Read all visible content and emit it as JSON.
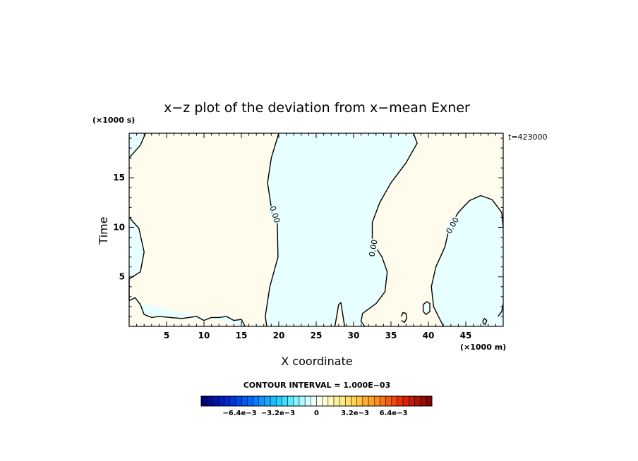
{
  "chart_data": {
    "type": "contour",
    "title": "x−z plot of the deviation from x−mean Exner",
    "xlabel": "X coordinate",
    "ylabel": "Time",
    "x_unit_label": "(×1000 m)",
    "y_unit_label": "(×1000 s)",
    "time_label": "t=423000",
    "xlim": [
      0,
      50
    ],
    "ylim": [
      0,
      19.5
    ],
    "x_ticks": [
      5,
      10,
      15,
      20,
      25,
      30,
      35,
      40,
      45
    ],
    "x_tick_labels": [
      "5",
      "10",
      "15",
      "20",
      "25",
      "30",
      "35",
      "40",
      "45"
    ],
    "y_ticks": [
      5,
      10,
      15
    ],
    "y_tick_labels": [
      "5",
      "10",
      "15"
    ],
    "contour_level_label": "0.00",
    "contour_labels": [
      {
        "text": "0.00",
        "x": 19.5,
        "y": 11.3,
        "angle": 72
      },
      {
        "text": "0.00",
        "x": 32.6,
        "y": 7.9,
        "angle": -80
      },
      {
        "text": "0.00",
        "x": 43.2,
        "y": 10.2,
        "angle": -60
      }
    ],
    "contour_interval_text": "CONTOUR INTERVAL = 1.000E−03",
    "colorbar": {
      "min": -0.0096,
      "max": 0.0096,
      "levels": 40,
      "tick_labels": [
        "−6.4e−3",
        "−3.2e−3",
        "0",
        "3.2e−3",
        "6.4e−3"
      ],
      "tick_values": [
        -0.0064,
        -0.0032,
        0,
        0.0032,
        0.0064
      ]
    },
    "colors": {
      "positive_fill": "#fffcee",
      "negative_fill": "#e8ffff",
      "contour_line": "#000000"
    },
    "regions": [
      {
        "sign": "negative",
        "points": [
          [
            0,
            19.5
          ],
          [
            0,
            17
          ],
          [
            1.5,
            18.3
          ],
          [
            2.2,
            19.5
          ]
        ]
      },
      {
        "sign": "negative",
        "points": [
          [
            0,
            11
          ],
          [
            1.3,
            9.9
          ],
          [
            2,
            7.5
          ],
          [
            1.5,
            5.5
          ],
          [
            0,
            4.8
          ]
        ]
      },
      {
        "sign": "negative",
        "points": [
          [
            0,
            2.6
          ],
          [
            0.8,
            2.9
          ],
          [
            1.5,
            2.2
          ],
          [
            2,
            1.2
          ],
          [
            3,
            0.9
          ],
          [
            4,
            1
          ],
          [
            5.5,
            0.9
          ],
          [
            7,
            0.8
          ],
          [
            8,
            0.9
          ],
          [
            9,
            1
          ],
          [
            10,
            0.6
          ],
          [
            11,
            0.9
          ],
          [
            12,
            0.9
          ],
          [
            13,
            1
          ],
          [
            14,
            0.6
          ],
          [
            15,
            0.7
          ],
          [
            15.5,
            0
          ]
        ]
      },
      {
        "sign": "negative",
        "points": [
          [
            20,
            19.5
          ],
          [
            19,
            17
          ],
          [
            18.5,
            14.5
          ],
          [
            19,
            12
          ],
          [
            19.8,
            10.5
          ],
          [
            19.9,
            7
          ],
          [
            18.8,
            4
          ],
          [
            18.2,
            1
          ],
          [
            18.4,
            0
          ],
          [
            27.5,
            0
          ],
          [
            27.8,
            1.3
          ],
          [
            28,
            2.2
          ],
          [
            28.3,
            2.4
          ],
          [
            28.8,
            0
          ],
          [
            31.5,
            0
          ],
          [
            31,
            0.5
          ],
          [
            31.2,
            1.3
          ],
          [
            33,
            2.3
          ],
          [
            34.2,
            3.5
          ],
          [
            34.5,
            5.5
          ],
          [
            33.8,
            7
          ],
          [
            32.5,
            8.5
          ],
          [
            32.5,
            10.5
          ],
          [
            33.5,
            12.5
          ],
          [
            35,
            14.5
          ],
          [
            37,
            16.5
          ],
          [
            38.5,
            18.5
          ],
          [
            38,
            19.5
          ]
        ]
      },
      {
        "sign": "negative",
        "points": [
          [
            42,
            0
          ],
          [
            40.7,
            2
          ],
          [
            40.4,
            4
          ],
          [
            41,
            6
          ],
          [
            42.2,
            8
          ],
          [
            42.8,
            10
          ],
          [
            44,
            11.5
          ],
          [
            45.5,
            12.7
          ],
          [
            47,
            13.2
          ],
          [
            48.5,
            12.8
          ],
          [
            49.8,
            11.5
          ],
          [
            50,
            10
          ],
          [
            50,
            0
          ]
        ]
      },
      {
        "sign": "negative",
        "points": [
          [
            39.3,
            1.5
          ],
          [
            39.7,
            1.2
          ],
          [
            40.2,
            1.5
          ],
          [
            40.2,
            2.3
          ],
          [
            39.8,
            2.5
          ],
          [
            39.3,
            2.2
          ]
        ]
      },
      {
        "sign": "negative",
        "points": [
          [
            49.3,
            1
          ],
          [
            49.8,
            1.5
          ],
          [
            50,
            2.3
          ],
          [
            50,
            0.5
          ]
        ]
      }
    ],
    "contours": [
      [
        [
          0,
          17
        ],
        [
          1.5,
          18.3
        ],
        [
          2.2,
          19.5
        ]
      ],
      [
        [
          0,
          11
        ],
        [
          1.3,
          9.9
        ],
        [
          2,
          7.5
        ],
        [
          1.5,
          5.5
        ],
        [
          0,
          4.8
        ]
      ],
      [
        [
          0,
          2.6
        ],
        [
          0.8,
          2.9
        ],
        [
          1.5,
          2.2
        ],
        [
          2,
          1.2
        ],
        [
          3,
          0.9
        ],
        [
          4,
          1
        ],
        [
          5.5,
          0.9
        ],
        [
          7,
          0.8
        ],
        [
          8,
          0.9
        ],
        [
          9,
          1
        ],
        [
          10,
          0.6
        ],
        [
          11,
          0.9
        ],
        [
          12,
          0.9
        ],
        [
          13,
          1
        ],
        [
          14,
          0.6
        ],
        [
          15,
          0.7
        ],
        [
          15.5,
          0
        ]
      ],
      [
        [
          20,
          19.5
        ],
        [
          19,
          17
        ],
        [
          18.5,
          14.5
        ],
        [
          19,
          12
        ],
        [
          19.8,
          10.5
        ],
        [
          19.9,
          7
        ],
        [
          18.8,
          4
        ],
        [
          18.2,
          1
        ],
        [
          18.4,
          0
        ]
      ],
      [
        [
          27.5,
          0
        ],
        [
          27.8,
          1.3
        ],
        [
          28,
          2.2
        ],
        [
          28.3,
          2.4
        ],
        [
          28.8,
          0
        ]
      ],
      [
        [
          31.5,
          0
        ],
        [
          31,
          0.5
        ],
        [
          31.2,
          1.3
        ],
        [
          33,
          2.3
        ],
        [
          34.2,
          3.5
        ],
        [
          34.5,
          5.5
        ],
        [
          33.8,
          7
        ],
        [
          32.5,
          8.5
        ],
        [
          32.5,
          10.5
        ],
        [
          33.5,
          12.5
        ],
        [
          35,
          14.5
        ],
        [
          37,
          16.5
        ],
        [
          38.5,
          18.5
        ],
        [
          38,
          19.5
        ]
      ],
      [
        [
          42,
          0
        ],
        [
          40.7,
          2
        ],
        [
          40.4,
          4
        ],
        [
          41,
          6
        ],
        [
          42.2,
          8
        ],
        [
          42.8,
          10
        ],
        [
          44,
          11.5
        ],
        [
          45.5,
          12.7
        ],
        [
          47,
          13.2
        ],
        [
          48.5,
          12.8
        ],
        [
          49.8,
          11.5
        ],
        [
          50,
          10
        ]
      ],
      [
        [
          39.3,
          1.5
        ],
        [
          39.7,
          1.2
        ],
        [
          40.2,
          1.5
        ],
        [
          40.2,
          2.3
        ],
        [
          39.8,
          2.5
        ],
        [
          39.3,
          2.2
        ],
        [
          39.3,
          1.5
        ]
      ],
      [
        [
          36.4,
          0.6
        ],
        [
          36.8,
          0.4
        ],
        [
          37.1,
          0.8
        ],
        [
          37,
          1.3
        ],
        [
          36.6,
          1.4
        ],
        [
          36.4,
          1
        ]
      ],
      [
        [
          47.3,
          0.3
        ],
        [
          47.6,
          0.2
        ],
        [
          47.8,
          0.6
        ],
        [
          47.5,
          0.8
        ],
        [
          47.3,
          0.6
        ],
        [
          47.3,
          0.3
        ]
      ],
      [
        [
          49.3,
          1
        ],
        [
          49.8,
          1.5
        ],
        [
          50,
          2.3
        ]
      ],
      [
        [
          0,
          2.6
        ],
        [
          0,
          4.8
        ]
      ]
    ]
  }
}
